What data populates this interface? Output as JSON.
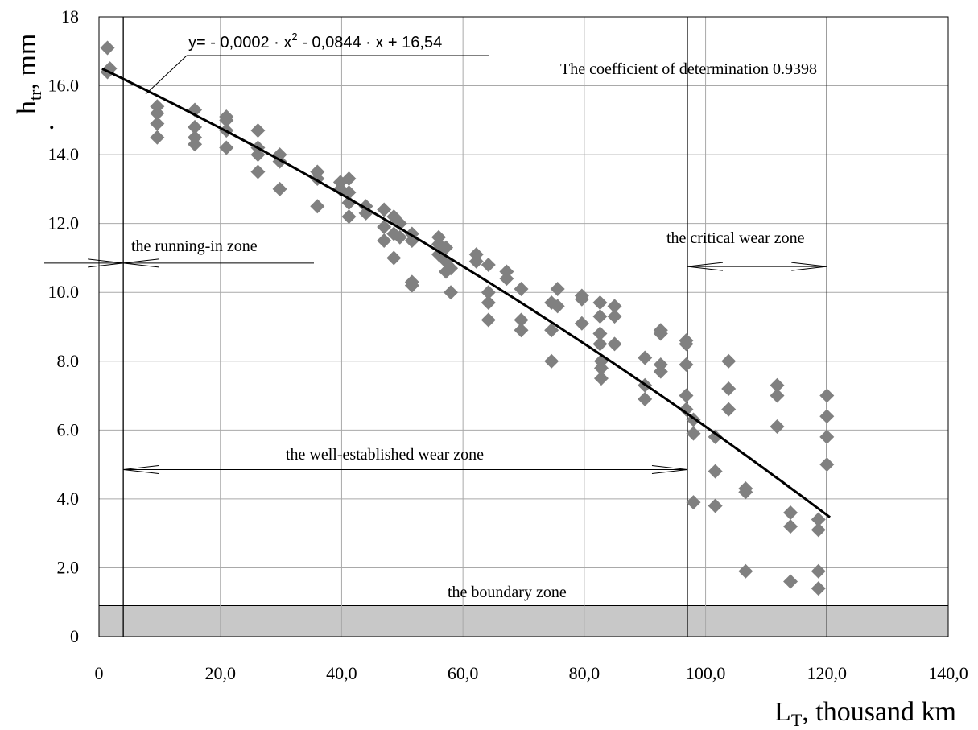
{
  "chart_data": {
    "type": "scatter",
    "xlabel": {
      "main": "L",
      "sub": "T",
      "rest": ", thousand km"
    },
    "ylabel": {
      "main": "h",
      "sub": "tr",
      "rest": ", mm",
      "dot": "."
    },
    "xlim": [
      0,
      140
    ],
    "ylim": [
      0,
      18
    ],
    "x_ticks": [
      {
        "value": 0,
        "label": "0"
      },
      {
        "value": 20,
        "label": "20,0"
      },
      {
        "value": 40,
        "label": "40,0"
      },
      {
        "value": 60,
        "label": "60,0"
      },
      {
        "value": 80,
        "label": "80,0"
      },
      {
        "value": 100,
        "label": "100,0"
      },
      {
        "value": 120,
        "label": "120,0"
      },
      {
        "value": 140,
        "label": "140,0"
      }
    ],
    "y_ticks": [
      {
        "value": 0,
        "label": "0"
      },
      {
        "value": 2,
        "label": "2.0"
      },
      {
        "value": 4,
        "label": "4.0"
      },
      {
        "value": 6,
        "label": "6.0"
      },
      {
        "value": 8,
        "label": "8.0"
      },
      {
        "value": 10,
        "label": "10.0"
      },
      {
        "value": 12,
        "label": "12.0"
      },
      {
        "value": 14,
        "label": "14.0"
      },
      {
        "value": 16,
        "label": "16.0"
      },
      {
        "value": 18,
        "label": "18"
      }
    ],
    "grid": true,
    "marker_color": "#808080",
    "line_color": "#000000",
    "boundary_fill": "#c8c8c8",
    "series": [
      {
        "points": [
          [
            1.4,
            17.1
          ],
          [
            1.4,
            16.4
          ],
          [
            1.8,
            16.5
          ],
          [
            9.6,
            15.4
          ],
          [
            9.6,
            15.2
          ],
          [
            9.6,
            14.9
          ],
          [
            9.6,
            14.5
          ],
          [
            15.8,
            15.3
          ],
          [
            15.8,
            14.8
          ],
          [
            15.8,
            14.5
          ],
          [
            15.8,
            14.3
          ],
          [
            21.0,
            15.1
          ],
          [
            21.0,
            15.0
          ],
          [
            21.0,
            14.7
          ],
          [
            21.0,
            14.2
          ],
          [
            26.2,
            14.7
          ],
          [
            26.2,
            14.2
          ],
          [
            26.2,
            14.0
          ],
          [
            26.2,
            13.5
          ],
          [
            29.8,
            14.0
          ],
          [
            29.8,
            13.8
          ],
          [
            29.8,
            13.0
          ],
          [
            36.0,
            13.5
          ],
          [
            36.0,
            13.3
          ],
          [
            36.0,
            12.5
          ],
          [
            39.8,
            13.2
          ],
          [
            39.8,
            13.0
          ],
          [
            41.2,
            13.3
          ],
          [
            41.2,
            12.9
          ],
          [
            41.2,
            12.6
          ],
          [
            41.2,
            12.2
          ],
          [
            44.0,
            12.5
          ],
          [
            44.0,
            12.3
          ],
          [
            47.0,
            12.4
          ],
          [
            47.0,
            11.9
          ],
          [
            47.0,
            11.5
          ],
          [
            48.6,
            12.2
          ],
          [
            48.6,
            11.7
          ],
          [
            48.6,
            11.0
          ],
          [
            49.6,
            12.0
          ],
          [
            49.6,
            11.6
          ],
          [
            51.6,
            11.7
          ],
          [
            51.6,
            11.5
          ],
          [
            51.6,
            10.3
          ],
          [
            51.6,
            10.2
          ],
          [
            56.0,
            11.6
          ],
          [
            56.0,
            11.4
          ],
          [
            56.0,
            11.1
          ],
          [
            57.2,
            11.3
          ],
          [
            57.2,
            10.9
          ],
          [
            57.2,
            10.6
          ],
          [
            58.0,
            10.7
          ],
          [
            58.0,
            10.0
          ],
          [
            62.2,
            11.1
          ],
          [
            62.2,
            10.9
          ],
          [
            64.2,
            10.8
          ],
          [
            64.2,
            10.0
          ],
          [
            64.2,
            9.7
          ],
          [
            64.2,
            9.2
          ],
          [
            67.2,
            10.6
          ],
          [
            67.2,
            10.4
          ],
          [
            69.6,
            10.1
          ],
          [
            69.6,
            9.2
          ],
          [
            69.6,
            8.9
          ],
          [
            74.6,
            9.7
          ],
          [
            74.6,
            8.9
          ],
          [
            74.6,
            8.0
          ],
          [
            75.6,
            10.1
          ],
          [
            75.6,
            9.6
          ],
          [
            79.6,
            9.9
          ],
          [
            79.6,
            9.8
          ],
          [
            79.6,
            9.1
          ],
          [
            82.6,
            9.7
          ],
          [
            82.6,
            9.3
          ],
          [
            82.6,
            8.8
          ],
          [
            82.6,
            8.5
          ],
          [
            82.8,
            8.0
          ],
          [
            82.8,
            7.8
          ],
          [
            82.8,
            7.5
          ],
          [
            85.0,
            9.6
          ],
          [
            85.0,
            9.3
          ],
          [
            85.0,
            8.5
          ],
          [
            90.0,
            8.1
          ],
          [
            90.0,
            7.3
          ],
          [
            90.0,
            6.9
          ],
          [
            92.6,
            8.9
          ],
          [
            92.6,
            8.8
          ],
          [
            92.6,
            7.9
          ],
          [
            92.6,
            7.7
          ],
          [
            96.8,
            8.6
          ],
          [
            96.8,
            8.5
          ],
          [
            96.8,
            7.9
          ],
          [
            96.8,
            7.0
          ],
          [
            96.8,
            6.6
          ],
          [
            98.0,
            6.3
          ],
          [
            98.0,
            5.9
          ],
          [
            98.0,
            3.9
          ],
          [
            101.6,
            5.8
          ],
          [
            101.6,
            4.8
          ],
          [
            101.6,
            3.8
          ],
          [
            103.8,
            8.0
          ],
          [
            103.8,
            7.2
          ],
          [
            103.8,
            6.6
          ],
          [
            106.6,
            4.3
          ],
          [
            106.6,
            4.2
          ],
          [
            106.6,
            1.9
          ],
          [
            111.8,
            7.3
          ],
          [
            111.8,
            7.0
          ],
          [
            111.8,
            6.1
          ],
          [
            114.0,
            3.6
          ],
          [
            114.0,
            3.2
          ],
          [
            114.0,
            1.6
          ],
          [
            118.6,
            3.4
          ],
          [
            118.6,
            3.1
          ],
          [
            118.6,
            1.9
          ],
          [
            118.6,
            1.4
          ],
          [
            120.0,
            7.0
          ],
          [
            120.0,
            6.4
          ],
          [
            120.0,
            5.8
          ],
          [
            120.0,
            5.0
          ]
        ]
      }
    ],
    "trendline": {
      "equation": "y= - 0,0002·x² - 0,0844·x + 16,54",
      "a": -0.0002,
      "b": -0.0844,
      "c": 16.54,
      "x_from": 0.5,
      "x_to": 120.5
    },
    "annotations": {
      "equation_text": "y= - 0,0002 · x",
      "equation_sup": "2",
      "equation_tail": " - 0,0844 · x + 16,54",
      "r2_text": "The coefficient of determination  0.9398",
      "running_in": "the running-in zone",
      "critical": "the critical wear zone",
      "well_established": "the well-established wear zone",
      "boundary": "the boundary zone"
    },
    "zones": {
      "running_in_end_x": 4,
      "well_established_end_x": 97,
      "critical_end_x": 120,
      "boundary_top_y": 0.9,
      "running_in_arrow_y": 10.85,
      "critical_arrow_y": 10.75,
      "well_established_arrow_y": 4.85
    }
  }
}
